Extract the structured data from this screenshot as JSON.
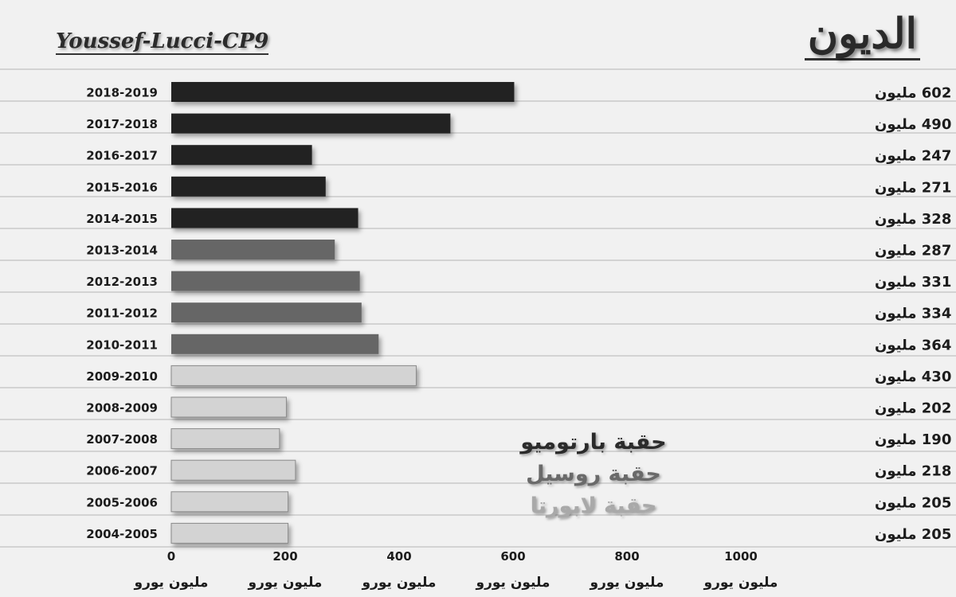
{
  "header": {
    "title": "الديون",
    "author": "Youssef-Lucci-CP9"
  },
  "legend": {
    "eras": [
      {
        "label": "حقبة بارتوميو",
        "color": "#2b2b2b"
      },
      {
        "label": "حقبة روسيل",
        "color": "#6a6a6a"
      },
      {
        "label": "حقبة لابورتا",
        "color": "#a9a9a9"
      }
    ]
  },
  "colors": {
    "dark": "#202020",
    "mid": "#666666",
    "light": "#d3d3d3",
    "light_border": "#8a8a8a",
    "background": "#f1f1f1",
    "ruled_line": "#c9c9c9"
  },
  "chart_data": {
    "type": "bar",
    "orientation": "horizontal",
    "categories": [
      "2018-2019",
      "2017-2018",
      "2016-2017",
      "2015-2016",
      "2014-2015",
      "2013-2014",
      "2012-2013",
      "2011-2012",
      "2010-2011",
      "2009-2010",
      "2008-2009",
      "2007-2008",
      "2006-2007",
      "2005-2006",
      "2004-2005"
    ],
    "values": [
      602,
      490,
      247,
      271,
      328,
      287,
      331,
      334,
      364,
      430,
      202,
      190,
      218,
      205,
      205
    ],
    "value_labels": [
      "602 مليون",
      "490 مليون",
      "247 مليون",
      "271 مليون",
      "328 مليون",
      "287 مليون",
      "331 مليون",
      "334 مليون",
      "364 مليون",
      "430 مليون",
      "202 مليون",
      "190 مليون",
      "218 مليون",
      "205 مليون",
      "205 مليون"
    ],
    "era": [
      "dark",
      "dark",
      "dark",
      "dark",
      "dark",
      "mid",
      "mid",
      "mid",
      "mid",
      "light",
      "light",
      "light",
      "light",
      "light",
      "light"
    ],
    "xlim": [
      0,
      1000
    ],
    "ticks": [
      0,
      200,
      400,
      600,
      800,
      1000
    ],
    "tick_unit_labels": [
      "مليون يورو",
      "مليون يورو",
      "مليون يورو",
      "مليون يورو",
      "مليون يورو",
      "مليون يورو"
    ],
    "grid": false
  }
}
